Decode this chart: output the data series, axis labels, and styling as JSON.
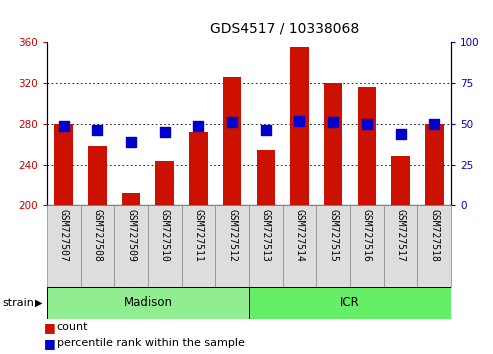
{
  "title": "GDS4517 / 10338068",
  "samples": [
    "GSM727507",
    "GSM727508",
    "GSM727509",
    "GSM727510",
    "GSM727511",
    "GSM727512",
    "GSM727513",
    "GSM727514",
    "GSM727515",
    "GSM727516",
    "GSM727517",
    "GSM727518"
  ],
  "counts": [
    280,
    258,
    212,
    244,
    272,
    326,
    254,
    356,
    320,
    316,
    248,
    280
  ],
  "percentiles": [
    49,
    46,
    39,
    45,
    49,
    51,
    46,
    52,
    51,
    50,
    44,
    50
  ],
  "groups": [
    {
      "label": "Madison",
      "start": 0,
      "end": 6,
      "color": "#90ee90"
    },
    {
      "label": "ICR",
      "start": 6,
      "end": 12,
      "color": "#66ee66"
    }
  ],
  "bar_color": "#cc1100",
  "dot_color": "#0000cc",
  "ylim_left": [
    200,
    360
  ],
  "ylim_right": [
    0,
    100
  ],
  "yticks_left": [
    200,
    240,
    280,
    320,
    360
  ],
  "yticks_right": [
    0,
    25,
    50,
    75,
    100
  ],
  "tick_label_color_left": "#cc0000",
  "tick_label_color_right": "#0000cc",
  "bar_width": 0.55,
  "dot_size": 45,
  "strain_label": "strain",
  "legend_count_label": "count",
  "legend_pct_label": "percentile rank within the sample",
  "title_fontsize": 10,
  "axis_fontsize": 7.5,
  "xtick_fontsize": 7,
  "legend_fontsize": 8,
  "group_label_fontsize": 8.5,
  "strain_fontsize": 8
}
